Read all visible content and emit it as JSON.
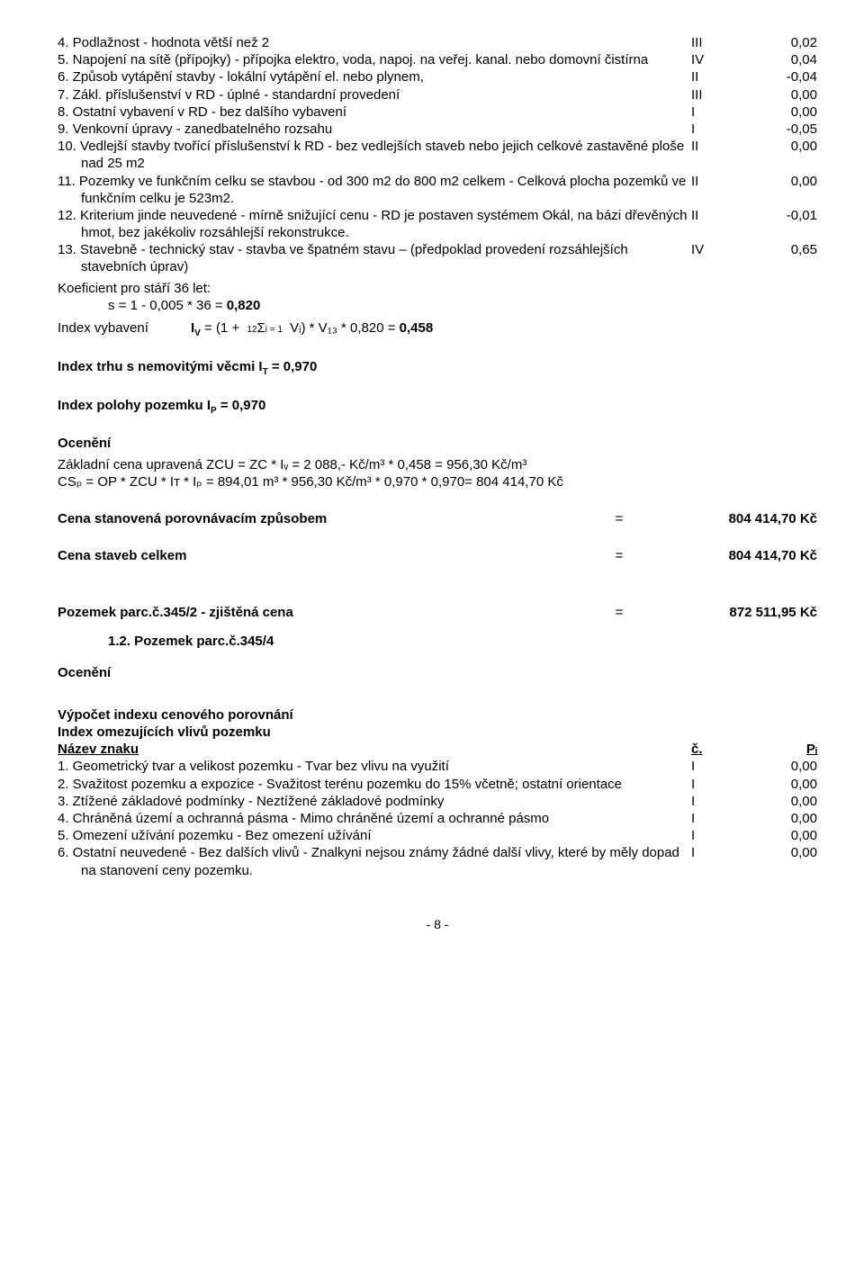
{
  "items_top": [
    {
      "n": "4.",
      "text": "Podlažnost - hodnota větší než 2",
      "c": "III",
      "v": "0,02",
      "indent": false
    },
    {
      "n": "5.",
      "text": "Napojení na sítě (přípojky) - přípojka elektro, voda, napoj. na veřej. kanal. nebo domovní čistírna",
      "c": "IV",
      "v": "0,04",
      "indent": false
    },
    {
      "n": "6.",
      "text": "Způsob vytápění stavby - lokální vytápění el. nebo plynem,",
      "c": "II",
      "v": "-0,04",
      "indent": false
    },
    {
      "n": "7.",
      "text": "Zákl. příslušenství v RD - úplné - standardní provedení",
      "c": "III",
      "v": "0,00",
      "indent": false
    },
    {
      "n": "8.",
      "text": "Ostatní vybavení v RD - bez dalšího vybavení",
      "c": "I",
      "v": "0,00",
      "indent": false
    },
    {
      "n": "9.",
      "text": "Venkovní úpravy - zanedbatelného rozsahu",
      "c": "I",
      "v": "-0,05",
      "indent": false
    },
    {
      "n": "10.",
      "text": "Vedlejší stavby tvořící příslušenství k RD - bez vedlejších staveb nebo jejich celkové zastavěné ploše nad 25 m2",
      "c": "II",
      "v": "0,00",
      "indent": false
    },
    {
      "n": "11.",
      "text": "Pozemky ve funkčním celku se stavbou - od 300 m2 do 800 m2 celkem - Celková plocha pozemků ve funkčním celku je 523m2.",
      "c": "II",
      "v": "0,00",
      "indent": false
    },
    {
      "n": "12.",
      "text": "Kriterium jinde neuvedené - mírně snižující cenu - RD je postaven systémem Okál, na bázi dřevěných hmot, bez jakékoliv rozsáhlejší rekonstrukce.",
      "c": "II",
      "v": "-0,01",
      "indent": false
    },
    {
      "n": "13.",
      "text": "Stavebně - technický stav - stavba ve špatném stavu – (předpoklad provedení rozsáhlejších stavebních úprav)",
      "c": "IV",
      "v": "0,65",
      "indent": false
    }
  ],
  "koef_line1": "Koeficient pro stáří 36 let:",
  "koef_line2": "s = 1 - 0,005 * 36 = ",
  "koef_val": "0,820",
  "iv_label": "Index vybavení",
  "iv_pre": "I",
  "iv_sub": "V",
  "iv_eq": " = (1 + ",
  "iv_sig_top": "12",
  "iv_sig_bot": "i = 1",
  "iv_sig": "Σ",
  "iv_mid": " Vᵢ) * V₁₃ * 0,820 = ",
  "iv_val": "0,458",
  "it_line_pre": "Index trhu s nemovitými věcmi I",
  "it_sub": "T",
  "it_val": " = 0,970",
  "ip_line_pre": "Index polohy pozemku I",
  "ip_sub": "P",
  "ip_val": " = 0,970",
  "oceneni": "Ocenění",
  "calc_line1": "Základní cena upravená ZCU = ZC * Iᵥ = 2 088,- Kč/m³ * 0,458 = 956,30 Kč/m³",
  "calc_line2": "CSₚ = OP * ZCU * Iᴛ * Iₚ = 894,01 m³ * 956,30 Kč/m³ * 0,970 * 0,970= 804 414,70 Kč",
  "tot1_label": "Cena stanovená porovnávacím způsobem",
  "tot1_val": "804 414,70 Kč",
  "tot2_label": "Cena staveb celkem",
  "tot2_val": "804 414,70 Kč",
  "tot3_label": "Pozemek parc.č.345/2 - zjištěná cena",
  "tot3_val": "872 511,95 Kč",
  "sub_1_2": "1.2. Pozemek parc.č.345/4",
  "vypocet": "Výpočet indexu cenového porovnání",
  "index_omez": "Index omezujících vlivů pozemku",
  "hdr_name": "Název znaku",
  "hdr_c": "č.",
  "hdr_p": "Pᵢ",
  "items_bot": [
    {
      "n": "1.",
      "text": "Geometrický tvar a velikost pozemku - Tvar bez vlivu na využití",
      "c": "I",
      "v": "0,00"
    },
    {
      "n": "2.",
      "text": "Svažitost pozemku a expozice - Svažitost terénu pozemku do 15% včetně; ostatní orientace",
      "c": "I",
      "v": "0,00"
    },
    {
      "n": "3.",
      "text": "Ztížené základové podmínky - Neztížené základové podmínky",
      "c": "I",
      "v": "0,00"
    },
    {
      "n": "4.",
      "text": "Chráněná území a ochranná pásma - Mimo chráněné území a ochranné pásmo",
      "c": "I",
      "v": "0,00"
    },
    {
      "n": "5.",
      "text": "Omezení užívání pozemku - Bez omezení užívání",
      "c": "I",
      "v": "0,00"
    },
    {
      "n": "6.",
      "text": "Ostatní neuvedené - Bez dalších vlivů - Znalkyni nejsou známy žádné další vlivy, které by měly dopad na stanovení ceny pozemku.",
      "c": "I",
      "v": "0,00"
    }
  ],
  "pagenum": "- 8 -"
}
